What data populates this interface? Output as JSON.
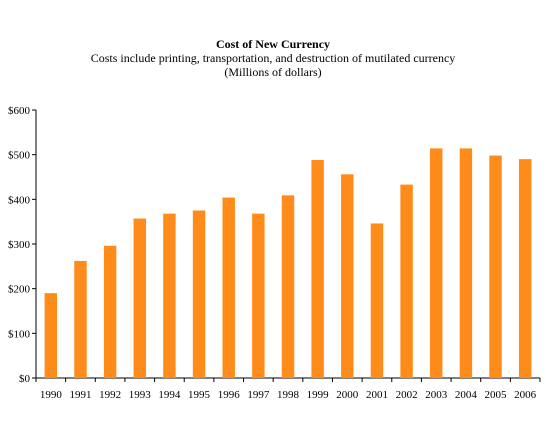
{
  "chart_data": {
    "type": "bar",
    "title": "Cost of New Currency",
    "subtitle": "Costs include printing, transportation, and destruction of mutilated currency",
    "units_note": "(Millions of dollars)",
    "categories": [
      "1990",
      "1991",
      "1992",
      "1993",
      "1994",
      "1995",
      "1996",
      "1997",
      "1998",
      "1999",
      "2000",
      "2001",
      "2002",
      "2003",
      "2004",
      "2005",
      "2006"
    ],
    "values": [
      190,
      262,
      296,
      357,
      368,
      375,
      404,
      368,
      409,
      488,
      456,
      346,
      433,
      514,
      514,
      498,
      490
    ],
    "ylim": [
      0,
      600
    ],
    "yticks": [
      0,
      100,
      200,
      300,
      400,
      500,
      600
    ],
    "ytick_labels": [
      "$0",
      "$100",
      "$200",
      "$300",
      "$400",
      "$500",
      "$600"
    ],
    "bar_color": "#FF8C1A",
    "grid": false,
    "legend": "none"
  }
}
